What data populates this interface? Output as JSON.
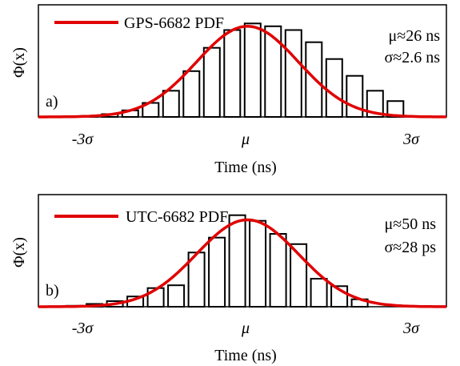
{
  "figure": {
    "panels": [
      {
        "panel_label": "a)",
        "ylabel": "Φ(x)",
        "xlabel": "Time (ns)",
        "legend": "GPS-6682 PDF",
        "stat_mu": "μ≈26 ns",
        "stat_sigma": "σ≈2.6 ns",
        "ticks": [
          "-3σ",
          "μ",
          "3σ"
        ]
      },
      {
        "panel_label": "b)",
        "ylabel": "Φ(x)",
        "xlabel": "Time (ns)",
        "legend": "UTC-6682 PDF",
        "stat_mu": "μ≈50 ns",
        "stat_sigma": "σ≈28 ps",
        "ticks": [
          "-3σ",
          "μ",
          "3σ"
        ]
      }
    ]
  },
  "colors": {
    "pdf_curve": "#e00000",
    "bars": "#000000",
    "background": "#ffffff"
  },
  "chart_data": [
    {
      "type": "bar",
      "title": "",
      "xlabel": "Time (ns)",
      "ylabel": "Φ(x)",
      "x_ticks": [
        "-3σ",
        "μ",
        "3σ"
      ],
      "xlim_sigma": [
        -4.0,
        4.0
      ],
      "ylim": [
        0,
        1.2
      ],
      "legend_position": "top-left",
      "series": [
        {
          "name": "GPS-6682 PDF",
          "kind": "histogram",
          "bin_centers_sigma": [
            -3.0,
            -2.6,
            -2.2,
            -1.8,
            -1.4,
            -1.0,
            -0.6,
            -0.2,
            0.2,
            0.6,
            1.0,
            1.4,
            1.8,
            2.2,
            2.6,
            3.0
          ],
          "values": [
            0.01,
            0.03,
            0.07,
            0.15,
            0.28,
            0.49,
            0.74,
            0.93,
            1.0,
            0.97,
            0.93,
            0.8,
            0.62,
            0.44,
            0.28,
            0.17
          ]
        },
        {
          "name": "GPS-6682 PDF",
          "kind": "gaussian",
          "mean_sigma": 0.1,
          "peak": 0.97
        }
      ]
    },
    {
      "type": "bar",
      "title": "",
      "xlabel": "Time (ns)",
      "ylabel": "Φ(x)",
      "x_ticks": [
        "-3σ",
        "μ",
        "3σ"
      ],
      "xlim_sigma": [
        -4.0,
        4.0
      ],
      "ylim": [
        0,
        1.2
      ],
      "legend_position": "top-left",
      "series": [
        {
          "name": "UTC-6682 PDF",
          "kind": "histogram",
          "bin_centers_sigma": [
            -3.3,
            -2.9,
            -2.5,
            -2.1,
            -1.7,
            -1.3,
            -0.9,
            -0.5,
            -0.1,
            0.3,
            0.7,
            1.1,
            1.5,
            1.9,
            2.3
          ],
          "values": [
            0.01,
            0.03,
            0.06,
            0.11,
            0.2,
            0.23,
            0.58,
            0.74,
            0.98,
            0.92,
            0.78,
            0.67,
            0.3,
            0.22,
            0.08
          ]
        },
        {
          "name": "UTC-6682 PDF",
          "kind": "gaussian",
          "mean_sigma": 0.1,
          "peak": 0.93
        }
      ]
    }
  ]
}
